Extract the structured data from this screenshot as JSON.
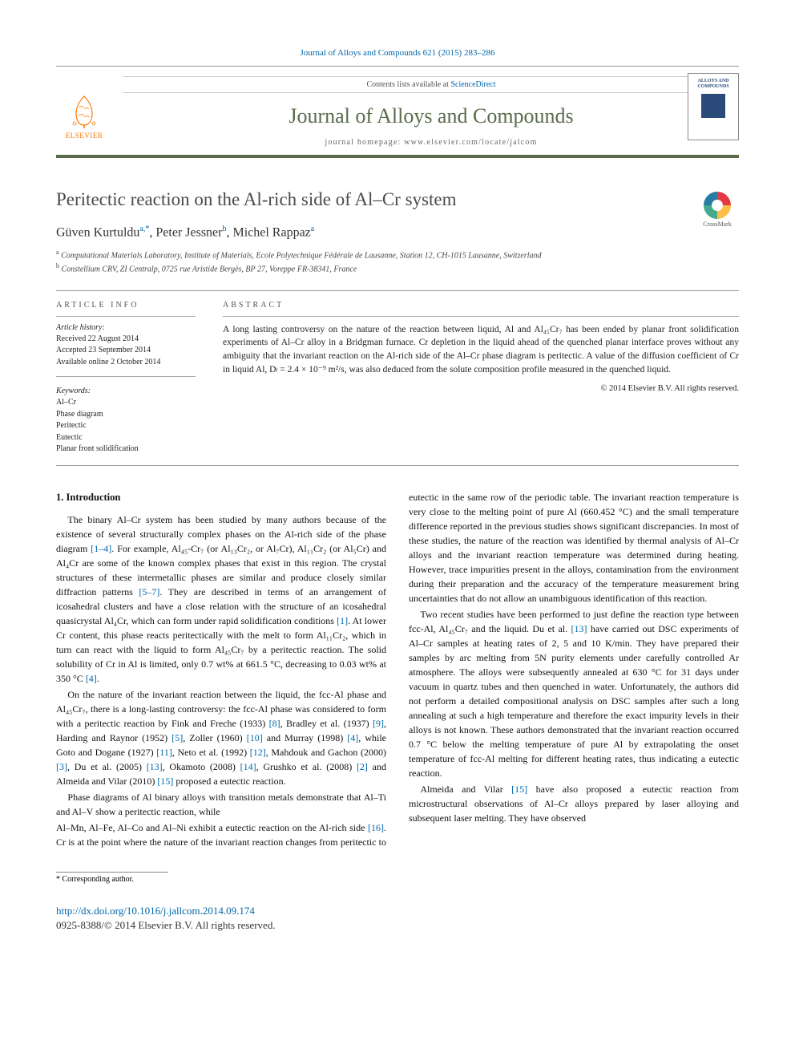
{
  "citation": "Journal of Alloys and Compounds 621 (2015) 283–286",
  "header": {
    "contents_pre": "Contents lists available at ",
    "contents_link": "ScienceDirect",
    "journal_name": "Journal of Alloys and Compounds",
    "homepage_label": "journal homepage: www.elsevier.com/locate/jalcom",
    "publisher": "ELSEVIER",
    "cover_title": "ALLOYS AND COMPOUNDS"
  },
  "crossmark": "CrossMark",
  "article": {
    "title": "Peritectic reaction on the Al-rich side of Al–Cr system",
    "authors_html": "Güven Kurtuldu",
    "author1": "Güven Kurtuldu",
    "author1_sup": "a,*",
    "author2": "Peter Jessner",
    "author2_sup": "b",
    "author3": "Michel Rappaz",
    "author3_sup": "a",
    "aff_a": "Computational Materials Laboratory, Institute of Materials, Ecole Polytechnique Fédérale de Lausanne, Station 12, CH-1015 Lausanne, Switzerland",
    "aff_b": "Constellium CRV, ZI Centralp, 0725 rue Aristide Bergès, BP 27, Voreppe FR-38341, France"
  },
  "info": {
    "heading": "ARTICLE INFO",
    "history_label": "Article history:",
    "received": "Received 22 August 2014",
    "accepted": "Accepted 23 September 2014",
    "online": "Available online 2 October 2014",
    "keywords_label": "Keywords:",
    "kw": [
      "Al–Cr",
      "Phase diagram",
      "Peritectic",
      "Eutectic",
      "Planar front solidification"
    ]
  },
  "abstract": {
    "heading": "ABSTRACT",
    "text": "A long lasting controversy on the nature of the reaction between liquid, Al and Al₄₅Cr₇ has been ended by planar front solidification experiments of Al–Cr alloy in a Bridgman furnace. Cr depletion in the liquid ahead of the quenched planar interface proves without any ambiguity that the invariant reaction on the Al-rich side of the Al–Cr phase diagram is peritectic. A value of the diffusion coefficient of Cr in liquid Al, Dₗ = 2.4 × 10⁻⁹ m²/s, was also deduced from the solute composition profile measured in the quenched liquid.",
    "copyright": "© 2014 Elsevier B.V. All rights reserved."
  },
  "body": {
    "section1_heading": "1. Introduction",
    "p1": "The binary Al–Cr system has been studied by many authors because of the existence of several structurally complex phases on the Al-rich side of the phase diagram [1–4]. For example, Al₄₅-Cr₇ (or Al₁₃Cr₂, or Al₇Cr), Al₁₁Cr₂ (or Al₅Cr) and Al₄Cr are some of the known complex phases that exist in this region. The crystal structures of these intermetallic phases are similar and produce closely similar diffraction patterns [5–7]. They are described in terms of an arrangement of icosahedral clusters and have a close relation with the structure of an icosahedral quasicrystal Al₄Cr, which can form under rapid solidification conditions [1]. At lower Cr content, this phase reacts peritectically with the melt to form Al₁₁Cr₂, which in turn can react with the liquid to form Al₄₅Cr₇ by a peritectic reaction. The solid solubility of Cr in Al is limited, only 0.7 wt% at 661.5 °C, decreasing to 0.03 wt% at 350 °C [4].",
    "p2": "On the nature of the invariant reaction between the liquid, the fcc-Al phase and Al₄₅Cr₇, there is a long-lasting controversy: the fcc-Al phase was considered to form with a peritectic reaction by Fink and Freche (1933) [8], Bradley et al. (1937) [9], Harding and Raynor (1952) [5], Zoller (1960) [10] and Murray (1998) [4], while Goto and Dogane (1927) [11], Neto et al. (1992) [12], Mahdouk and Gachon (2000) [3], Du et al. (2005) [13], Okamoto (2008) [14], Grushko et al. (2008) [2] and Almeida and Vilar (2010) [15] proposed a eutectic reaction.",
    "p3": "Phase diagrams of Al binary alloys with transition metals demonstrate that Al–Ti and Al–V show a peritectic reaction, while",
    "p4": "Al–Mn, Al–Fe, Al–Co and Al–Ni exhibit a eutectic reaction on the Al-rich side [16]. Cr is at the point where the nature of the invariant reaction changes from peritectic to eutectic in the same row of the periodic table. The invariant reaction temperature is very close to the melting point of pure Al (660.452 °C) and the small temperature difference reported in the previous studies shows significant discrepancies. In most of these studies, the nature of the reaction was identified by thermal analysis of Al–Cr alloys and the invariant reaction temperature was determined during heating. However, trace impurities present in the alloys, contamination from the environment during their preparation and the accuracy of the temperature measurement bring uncertainties that do not allow an unambiguous identification of this reaction.",
    "p5": "Two recent studies have been performed to just define the reaction type between fcc-Al, Al₄₅Cr₇ and the liquid. Du et al. [13] have carried out DSC experiments of Al–Cr samples at heating rates of 2, 5 and 10 K/min. They have prepared their samples by arc melting from 5N purity elements under carefully controlled Ar atmosphere. The alloys were subsequently annealed at 630 °C for 31 days under vacuum in quartz tubes and then quenched in water. Unfortunately, the authors did not perform a detailed compositional analysis on DSC samples after such a long annealing at such a high temperature and therefore the exact impurity levels in their alloys is not known. These authors demonstrated that the invariant reaction occurred 0.7 °C below the melting temperature of pure Al by extrapolating the onset temperature of fcc-Al melting for different heating rates, thus indicating a eutectic reaction.",
    "p6": "Almeida and Vilar [15] have also proposed a eutectic reaction from microstructural observations of Al–Cr alloys prepared by laser alloying and subsequent laser melting. They have observed"
  },
  "footer": {
    "corr": "* Corresponding author.",
    "doi": "http://dx.doi.org/10.1016/j.jallcom.2014.09.174",
    "issn": "0925-8388/© 2014 Elsevier B.V. All rights reserved."
  },
  "colors": {
    "link": "#0066aa",
    "journal": "#5a6b4a",
    "elsevier": "#ff7700"
  }
}
